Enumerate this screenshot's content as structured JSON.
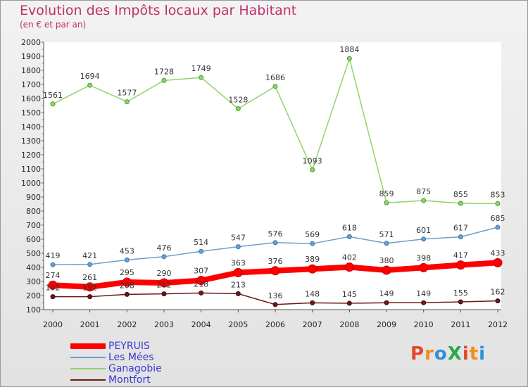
{
  "header": {
    "title": "Evolution des Impôts locaux par Habitant",
    "subtitle": "(en € et par an)"
  },
  "logo": {
    "text": "ProXiti",
    "colors": [
      "#e2482a",
      "#f28c1c",
      "#2d8fd6",
      "#2aa84a",
      "#e2482a",
      "#f28c1c",
      "#2d8fd6"
    ]
  },
  "chart_data": {
    "type": "line",
    "title": "Evolution des Impôts locaux par Habitant",
    "subtitle": "(en € et par an)",
    "x": [
      "2000",
      "2001",
      "2002",
      "2003",
      "2004",
      "2005",
      "2006",
      "2007",
      "2008",
      "2009",
      "2010",
      "2011",
      "2012"
    ],
    "ylim": [
      100,
      2000
    ],
    "yticks": [
      100,
      200,
      300,
      400,
      500,
      600,
      700,
      800,
      900,
      1000,
      1100,
      1200,
      1300,
      1400,
      1500,
      1600,
      1700,
      1800,
      1900,
      2000
    ],
    "grid": false,
    "legend_position": "bottom-left",
    "series": [
      {
        "name": "PEYRUIS",
        "color": "#ff0000",
        "values": [
          274,
          261,
          295,
          290,
          307,
          363,
          376,
          389,
          402,
          380,
          398,
          417,
          433
        ]
      },
      {
        "name": "Les Mées",
        "color": "#6a9fd0",
        "values": [
          419,
          421,
          453,
          476,
          514,
          547,
          576,
          569,
          618,
          571,
          601,
          617,
          685
        ]
      },
      {
        "name": "Ganagobie",
        "color": "#8fd46a",
        "values": [
          1561,
          1694,
          1577,
          1728,
          1749,
          1528,
          1686,
          1093,
          1884,
          859,
          875,
          855,
          853
        ]
      },
      {
        "name": "Montfort",
        "color": "#6a1a1a",
        "values": [
          192,
          192,
          208,
          212,
          218,
          213,
          136,
          148,
          145,
          149,
          149,
          155,
          162
        ]
      }
    ]
  }
}
